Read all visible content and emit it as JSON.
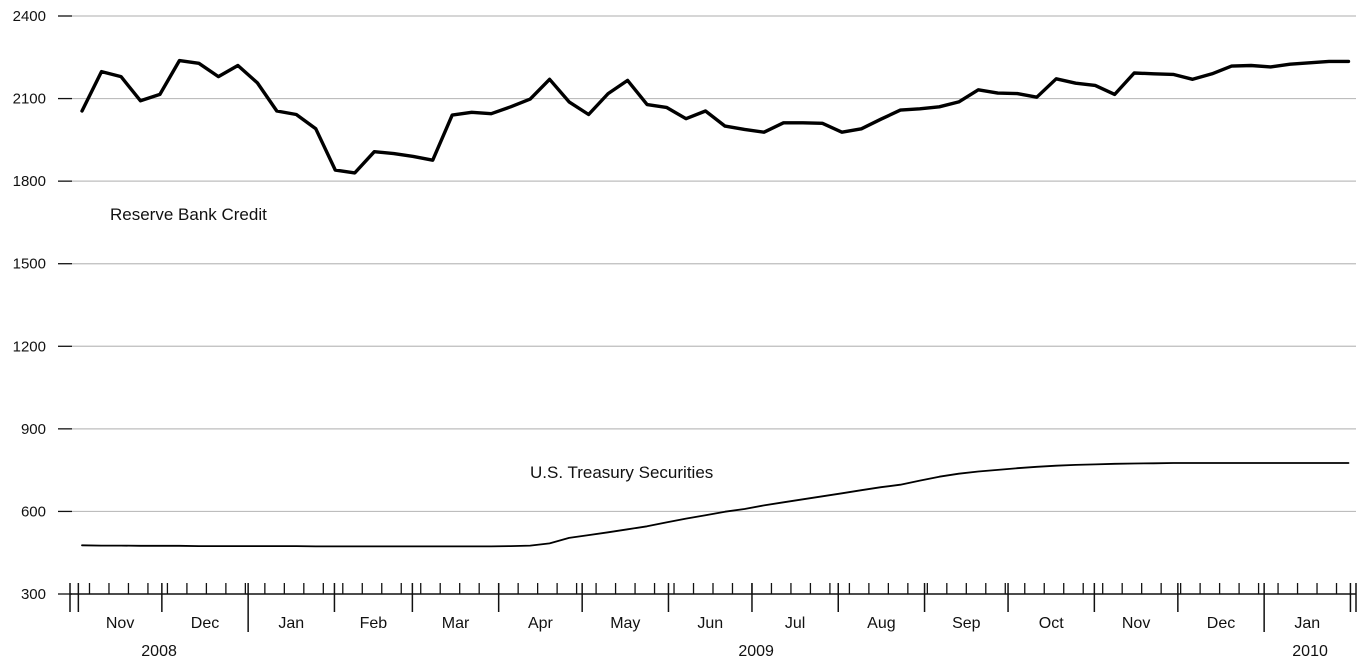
{
  "chart_data": {
    "type": "line",
    "title": "",
    "xlabel": "",
    "ylabel": "",
    "ylim": [
      300,
      2400
    ],
    "yticks": [
      300,
      600,
      900,
      1200,
      1500,
      1800,
      2100,
      2400
    ],
    "grid": true,
    "x_start_week": "2008-10-29",
    "month_labels": [
      "Nov",
      "Dec",
      "Jan",
      "Feb",
      "Mar",
      "Apr",
      "May",
      "Jun",
      "Jul",
      "Aug",
      "Sep",
      "Oct",
      "Nov",
      "Dec",
      "Jan"
    ],
    "year_labels": [
      "2008",
      "2009",
      "2010"
    ],
    "series": [
      {
        "name": "Reserve Bank Credit",
        "style": "thick",
        "values": [
          2055,
          2198,
          2180,
          2092,
          2115,
          2238,
          2228,
          2180,
          2220,
          2157,
          2055,
          2042,
          1990,
          1840,
          1830,
          1907,
          1900,
          1890,
          1876,
          2040,
          2050,
          2045,
          2070,
          2098,
          2170,
          2088,
          2042,
          2118,
          2166,
          2078,
          2068,
          2027,
          2055,
          2000,
          1988,
          1978,
          2012,
          2012,
          2010,
          1978,
          1990,
          2025,
          2058,
          2063,
          2070,
          2088,
          2132,
          2120,
          2118,
          2105,
          2172,
          2156,
          2148,
          2115,
          2193,
          2190,
          2188,
          2170,
          2190,
          2218,
          2220,
          2215,
          2225,
          2230,
          2235,
          2235
        ]
      },
      {
        "name": "U.S. Treasury Securities",
        "style": "thin",
        "values": [
          477,
          476,
          476,
          475,
          475,
          475,
          474,
          474,
          474,
          474,
          474,
          474,
          473,
          473,
          473,
          473,
          473,
          473,
          473,
          473,
          473,
          473,
          474,
          476,
          484,
          504,
          514,
          524,
          535,
          546,
          560,
          574,
          586,
          599,
          609,
          622,
          633,
          644,
          655,
          666,
          677,
          688,
          697,
          712,
          726,
          737,
          745,
          751,
          757,
          762,
          766,
          769,
          771,
          773,
          774,
          775,
          776,
          776,
          776,
          776,
          776,
          776,
          776,
          776,
          776,
          776
        ]
      }
    ]
  }
}
